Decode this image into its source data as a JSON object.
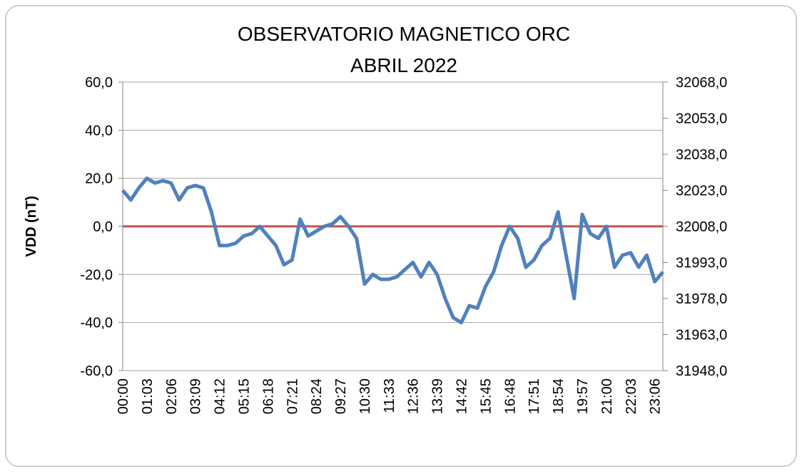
{
  "chart_data": {
    "type": "line",
    "title": "OBSERVATORIO MAGNETICO ORC",
    "subtitle": "ABRIL 2022",
    "y_label": "VDD (nT)",
    "categories": [
      "00:00",
      null,
      null,
      "01:03",
      null,
      null,
      "02:06",
      null,
      null,
      "03:09",
      null,
      null,
      "04:12",
      null,
      null,
      "05:15",
      null,
      null,
      "06:18",
      null,
      null,
      "07:21",
      null,
      null,
      "08:24",
      null,
      null,
      "09:27",
      null,
      null,
      "10:30",
      null,
      null,
      "11:33",
      null,
      null,
      "12:36",
      null,
      null,
      "13:39",
      null,
      null,
      "14:42",
      null,
      null,
      "15:45",
      null,
      null,
      "16:48",
      null,
      null,
      "17:51",
      null,
      null,
      "18:54",
      null,
      null,
      "19:57",
      null,
      null,
      "21:00",
      null,
      null,
      "22:03",
      null,
      null,
      "23:06",
      null
    ],
    "series": [
      {
        "color": "#4f81bd",
        "values": [
          15,
          11,
          16,
          20,
          18,
          19,
          18,
          11,
          16,
          17,
          16,
          6,
          -8,
          -8,
          -7,
          -4,
          -3,
          0,
          -4,
          -8,
          -16,
          -14,
          3,
          -4,
          -2,
          0,
          1,
          4,
          0,
          -5,
          -24,
          -20,
          -22,
          -22,
          -21,
          -18,
          -15,
          -21,
          -15,
          -20,
          -30,
          -38,
          -40,
          -33,
          -34,
          -25,
          -19,
          -8,
          0,
          -5,
          -17,
          -14,
          -8,
          -5,
          6,
          -12,
          -30,
          5,
          -3,
          -5,
          0,
          -17,
          -12,
          -11,
          -17,
          -12,
          -23,
          -19
        ]
      }
    ],
    "reference_line": {
      "value": 0,
      "color": "#c0504d"
    },
    "ylim": [
      -60,
      60
    ],
    "yticks": [
      {
        "value": -60,
        "label": "-60,0"
      },
      {
        "value": -40,
        "label": "-40,0"
      },
      {
        "value": -20,
        "label": "-20,0"
      },
      {
        "value": 0,
        "label": "0,0"
      },
      {
        "value": 20,
        "label": "20,0"
      },
      {
        "value": 40,
        "label": "40,0"
      },
      {
        "value": 60,
        "label": "60,0"
      }
    ],
    "y2lim": [
      31948,
      32068
    ],
    "y2ticks": [
      {
        "value": 31948,
        "label": "31948,0"
      },
      {
        "value": 31963,
        "label": "31963,0"
      },
      {
        "value": 31978,
        "label": "31978,0"
      },
      {
        "value": 31993,
        "label": "31993,0"
      },
      {
        "value": 32008,
        "label": "32008,0"
      },
      {
        "value": 32023,
        "label": "32023,0"
      },
      {
        "value": 32038,
        "label": "32038,0"
      },
      {
        "value": 32053,
        "label": "32053,0"
      },
      {
        "value": 32068,
        "label": "32068,0"
      }
    ],
    "grid": true
  }
}
